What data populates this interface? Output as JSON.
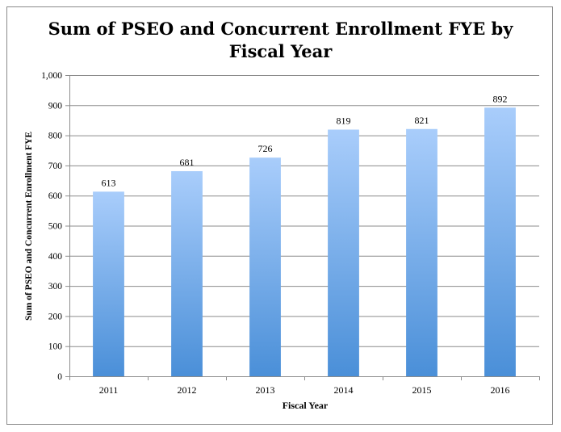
{
  "chart_data": {
    "type": "bar",
    "title_lines": [
      "Sum of PSEO and Concurrent Enrollment FYE by",
      "Fiscal Year"
    ],
    "xlabel": "Fiscal Year",
    "ylabel": "Sum of PSEO and Concurrent Enrollment FYE",
    "categories": [
      "2011",
      "2012",
      "2013",
      "2014",
      "2015",
      "2016"
    ],
    "values": [
      613,
      681,
      726,
      819,
      821,
      892
    ],
    "data_labels": [
      "613",
      "681",
      "726",
      "819",
      "821",
      "892"
    ],
    "ylim": [
      0,
      1000
    ],
    "yticks": [
      0,
      100,
      200,
      300,
      400,
      500,
      600,
      700,
      800,
      900,
      1000
    ],
    "ytick_labels": [
      "0",
      "100",
      "200",
      "300",
      "400",
      "500",
      "600",
      "700",
      "800",
      "900",
      "1,000"
    ],
    "grid": true,
    "legend": "none",
    "colors": {
      "bar_top": "#a9cdfb",
      "bar_bottom": "#4a8fd8",
      "grid": "#8c8c8c"
    }
  }
}
